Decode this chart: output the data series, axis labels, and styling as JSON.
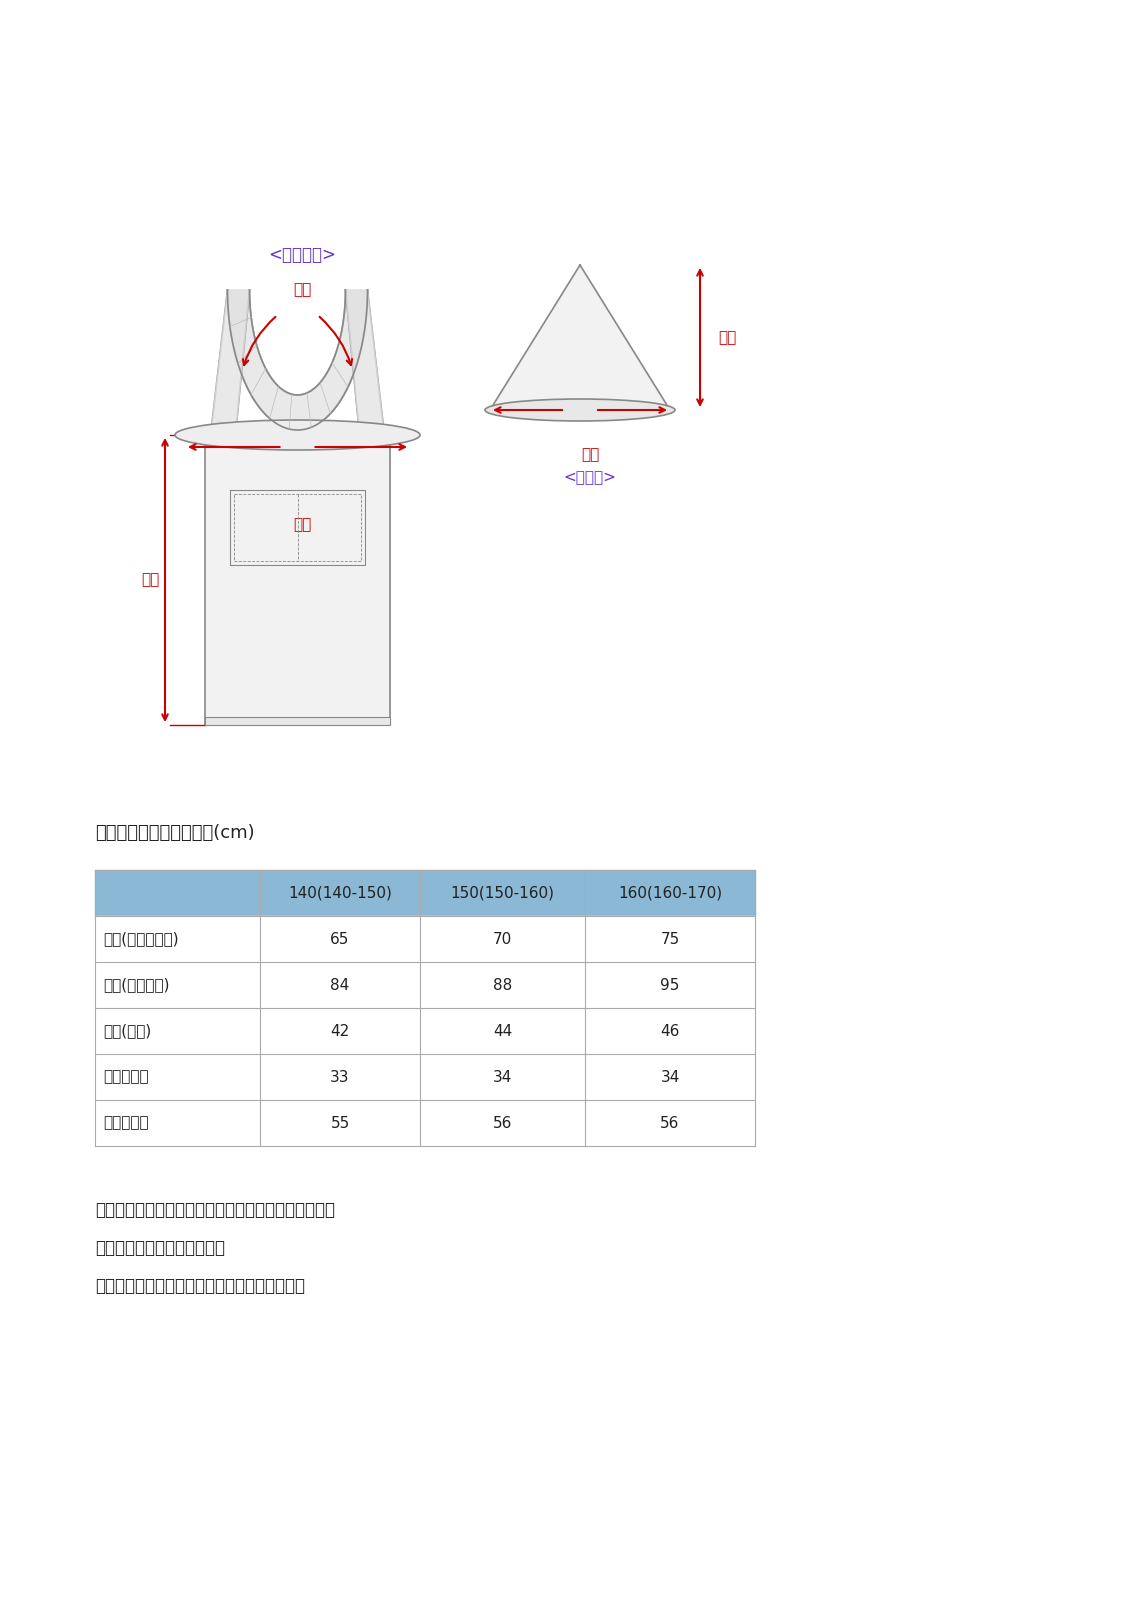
{
  "bg_color": "#ffffff",
  "table_title": "製品平置き寸法表　単位(cm)",
  "col_headers": [
    "",
    "140(140-150)",
    "150(150-160)",
    "160(160-170)"
  ],
  "row_labels": [
    "着丈(エプロン丈)",
    "身幅(腰まわり)",
    "首紐(ゴム)",
    "三角巾長さ",
    "三角巾頭囲"
  ],
  "table_data": [
    [
      "65",
      "70",
      "75"
    ],
    [
      "84",
      "88",
      "95"
    ],
    [
      "42",
      "44",
      "46"
    ],
    [
      "33",
      "34",
      "34"
    ],
    [
      "55",
      "56",
      "56"
    ]
  ],
  "header_bg": "#8bb8d4",
  "header_text": "#222222",
  "border_color": "#aaaaaa",
  "text_color": "#222222",
  "note_lines": [
    "商品によって平置きサイズと若干誤差がございます。",
    "あらかじめご了承ください。",
    "サイズ表を御確認の上御購入お願い致します。"
  ],
  "apron_label": "<エプロン>",
  "apron_kubi_label": "首紐",
  "apron_chakudake_label": "着丈",
  "apron_mihaba_label": "身幅",
  "sankaku_label": "<三角巾>",
  "sankaku_nagasa_label": "長さ",
  "sankaku_touikei_label": "頭囲",
  "label_color": "#cc0000",
  "label_color_purple": "#6633cc",
  "diagram_line_color": "#888888"
}
